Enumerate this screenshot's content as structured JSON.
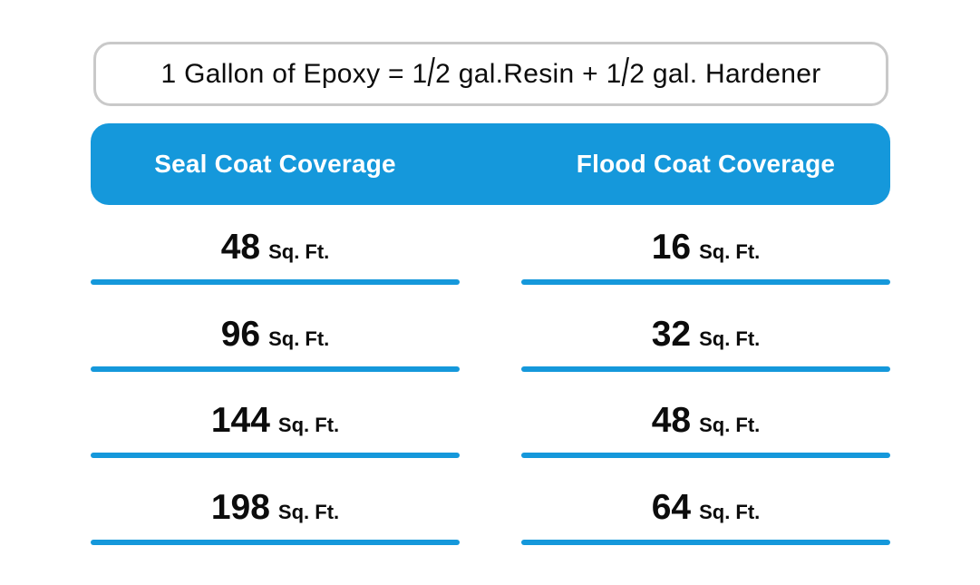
{
  "banner": {
    "text": "1 Gallon of Epoxy = 1/2 gal.Resin + 1/2 gal. Hardener"
  },
  "header": {
    "seal_label": "Seal Coat Coverage",
    "flood_label": "Flood Coat Coverage"
  },
  "table": {
    "unit": "Sq. Ft.",
    "rows": [
      {
        "seal": "48",
        "flood": "16"
      },
      {
        "seal": "96",
        "flood": "32"
      },
      {
        "seal": "144",
        "flood": "48"
      },
      {
        "seal": "198",
        "flood": "64"
      }
    ]
  },
  "colors": {
    "accent_blue": "#1598DB",
    "border_gray": "#C9C9C9",
    "text_color": "#0C0C0C",
    "header_text": "#FFFFFF"
  },
  "chart_data": {
    "type": "table",
    "title": "1 Gallon of Epoxy = 1/2 gal.Resin + 1/2 gal. Hardener",
    "columns": [
      "Seal Coat Coverage",
      "Flood Coat Coverage"
    ],
    "unit": "Sq. Ft.",
    "series": [
      {
        "name": "Seal Coat Coverage",
        "values": [
          48,
          96,
          144,
          198
        ]
      },
      {
        "name": "Flood Coat Coverage",
        "values": [
          16,
          32,
          48,
          64
        ]
      }
    ]
  }
}
